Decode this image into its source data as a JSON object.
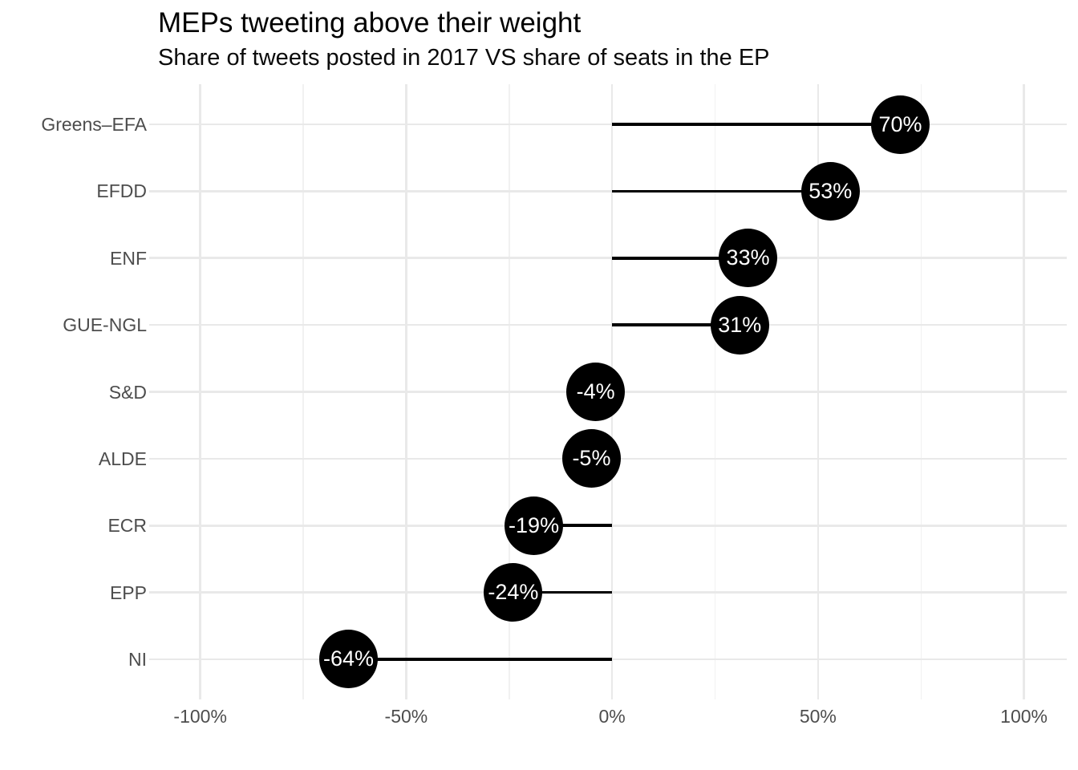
{
  "chart_data": {
    "type": "bar",
    "variant": "horizontal-lollipop",
    "title": "MEPs tweeting above their weight",
    "subtitle": "Share of tweets posted in 2017 VS share of seats in the EP",
    "categories": [
      "Greens–EFA",
      "EFDD",
      "ENF",
      "GUE-NGL",
      "S&D",
      "ALDE",
      "ECR",
      "EPP",
      "NI"
    ],
    "values": [
      70,
      53,
      33,
      31,
      -4,
      -5,
      -19,
      -24,
      -64
    ],
    "point_labels": [
      "70%",
      "53%",
      "33%",
      "31%",
      "-4%",
      "-5%",
      "-19%",
      "-24%",
      "-64%"
    ],
    "x_axis": {
      "tick_values": [
        -100,
        -50,
        0,
        50,
        100
      ],
      "tick_labels": [
        "-100%",
        "-50%",
        "0%",
        "50%",
        "100%"
      ],
      "minor_gridlines": [
        -75,
        -25,
        25,
        75
      ],
      "range": [
        -112.4,
        110.4
      ],
      "baseline": 0
    },
    "grid": "on",
    "legend": "none",
    "colors": {
      "point_fill": "#000000",
      "point_text": "#ffffff",
      "stem": "#000000",
      "grid_major": "#e9e9e9",
      "grid_minor": "#f1f1f1",
      "axis_text": "#4d4d4d",
      "title_text": "#000000",
      "background": "#ffffff"
    }
  }
}
